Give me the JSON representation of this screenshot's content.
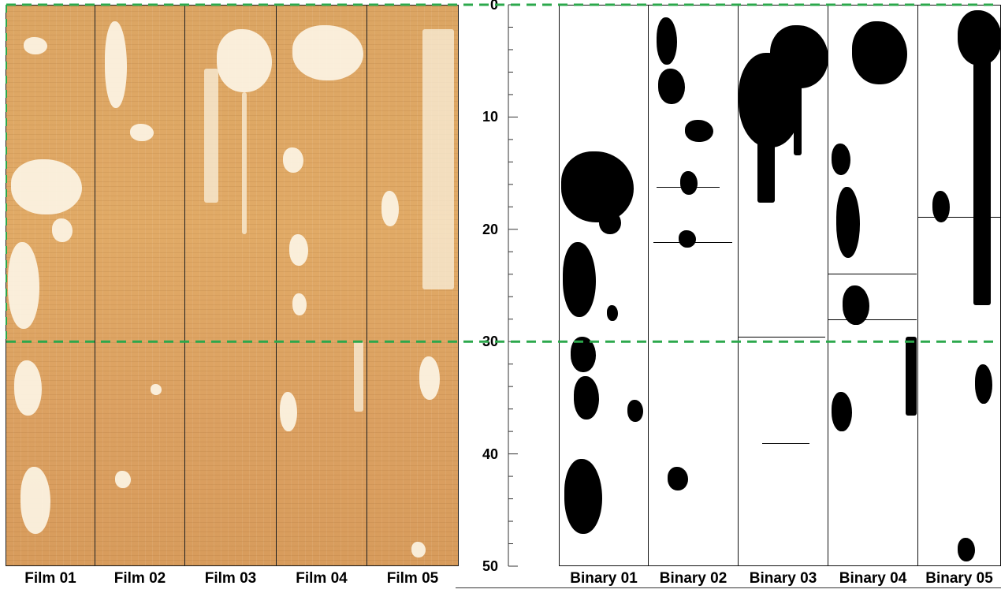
{
  "films": [
    {
      "label": "Film 01"
    },
    {
      "label": "Film 02"
    },
    {
      "label": "Film 03"
    },
    {
      "label": "Film 04"
    },
    {
      "label": "Film 05"
    }
  ],
  "binaries": [
    {
      "label": "Binary 01"
    },
    {
      "label": "Binary 02"
    },
    {
      "label": "Binary 03"
    },
    {
      "label": "Binary 04"
    },
    {
      "label": "Binary 05"
    }
  ],
  "axis": {
    "ticks": [
      "0",
      "10",
      "20",
      "30",
      "40",
      "50"
    ],
    "min": 0,
    "max": 50,
    "major_step": 10,
    "minor_step": 2
  },
  "guides": {
    "values": [
      0,
      30
    ],
    "color": "#2ca84c",
    "style": "dashed"
  },
  "colors": {
    "film_base": "#dca563",
    "film_spot": "#fcf4e4",
    "binary_foreground": "#000000",
    "binary_background": "#ffffff"
  }
}
